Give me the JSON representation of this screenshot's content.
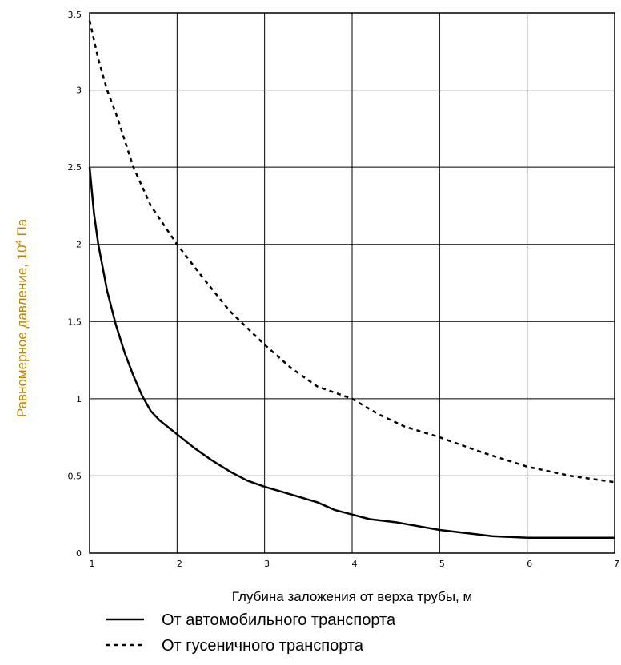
{
  "chart_data": {
    "type": "line",
    "xlabel": "Глубина заложения от верха трубы, м",
    "ylabel": "Равномерное давление, 10",
    "ylabel_sup": "4",
    "ylabel_unit": " Па",
    "xlim": [
      1,
      7
    ],
    "ylim": [
      0,
      3.5
    ],
    "x_ticks": [
      "1",
      "2",
      "3",
      "4",
      "5",
      "6",
      "7"
    ],
    "y_ticks": [
      "0",
      "0.5",
      "1",
      "1.5",
      "2",
      "2.5",
      "3",
      "3.5"
    ],
    "grid": true,
    "legend_position": "bottom",
    "series": [
      {
        "name": "От автомобильного транспорта",
        "style": "solid",
        "x": [
          1.0,
          1.05,
          1.1,
          1.2,
          1.3,
          1.4,
          1.5,
          1.6,
          1.7,
          1.8,
          2.0,
          2.2,
          2.4,
          2.6,
          2.8,
          3.0,
          3.3,
          3.6,
          3.8,
          4.0,
          4.2,
          4.5,
          4.7,
          5.0,
          5.3,
          5.6,
          6.0,
          6.5,
          7.0
        ],
        "values": [
          2.5,
          2.2,
          2.0,
          1.7,
          1.48,
          1.3,
          1.15,
          1.02,
          0.92,
          0.86,
          0.77,
          0.68,
          0.6,
          0.53,
          0.47,
          0.43,
          0.38,
          0.33,
          0.28,
          0.25,
          0.22,
          0.2,
          0.18,
          0.15,
          0.13,
          0.11,
          0.1,
          0.1,
          0.1
        ]
      },
      {
        "name": "От гусеничного транспорта",
        "style": "dashed",
        "x": [
          1.0,
          1.1,
          1.2,
          1.3,
          1.5,
          1.7,
          2.0,
          2.3,
          2.6,
          3.0,
          3.3,
          3.6,
          4.0,
          4.3,
          4.6,
          5.0,
          5.5,
          6.0,
          6.5,
          7.0
        ],
        "values": [
          3.45,
          3.2,
          3.0,
          2.85,
          2.5,
          2.25,
          2.0,
          1.78,
          1.57,
          1.35,
          1.2,
          1.08,
          1.0,
          0.9,
          0.82,
          0.75,
          0.65,
          0.56,
          0.5,
          0.46
        ]
      }
    ],
    "colors": {
      "axis": "#000000",
      "grid": "#000000",
      "series": "#000000",
      "ylabel": "#b8860b"
    }
  }
}
